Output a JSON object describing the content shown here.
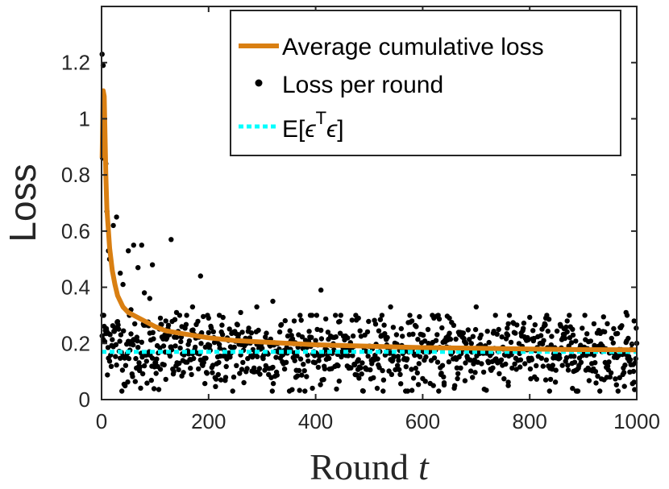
{
  "chart_data": {
    "type": "line",
    "xlabel": "Round",
    "xlabel_var": "t",
    "ylabel": "Loss",
    "xlim": [
      0,
      1000
    ],
    "ylim": [
      0,
      1.4
    ],
    "xticks": [
      0,
      200,
      400,
      600,
      800,
      1000
    ],
    "xtick_labels": [
      "0",
      "200",
      "400",
      "600",
      "800",
      "1000"
    ],
    "yticks": [
      0,
      0.2,
      0.4,
      0.6,
      0.8,
      1,
      1.2
    ],
    "ytick_labels": [
      "0",
      "0.2",
      "0.4",
      "0.6",
      "0.8",
      "1",
      "1.2"
    ],
    "grid": false,
    "legend_position": "top-right",
    "legend": {
      "avg": "Average cumulative loss",
      "per_round": "Loss per round",
      "noise_prefix": "E[",
      "noise_eps": "ϵ",
      "noise_sup": "T",
      "noise_suffix": "]"
    },
    "colors": {
      "avg": "#d97f12",
      "per_round": "#000000",
      "noise": "#00ffff",
      "axes": "#262626"
    },
    "series": [
      {
        "name": "Average cumulative loss",
        "x": [
          1,
          3,
          5,
          8,
          10,
          15,
          20,
          25,
          30,
          40,
          50,
          60,
          80,
          100,
          120,
          150,
          200,
          250,
          300,
          400,
          500,
          600,
          700,
          800,
          900,
          1000
        ],
        "y": [
          0.86,
          1.1,
          1.08,
          0.8,
          0.68,
          0.54,
          0.46,
          0.41,
          0.37,
          0.33,
          0.31,
          0.3,
          0.28,
          0.26,
          0.245,
          0.235,
          0.22,
          0.21,
          0.205,
          0.195,
          0.19,
          0.185,
          0.183,
          0.18,
          0.178,
          0.177
        ]
      },
      {
        "name": "E[ϵTϵ]",
        "x": [
          0,
          1000
        ],
        "y": [
          0.17,
          0.17
        ]
      },
      {
        "name": "Loss per round",
        "scatter": true,
        "outliers": [
          [
            1,
            1.23
          ],
          [
            2,
            0.86
          ],
          [
            3,
            1.19
          ],
          [
            5,
            0.98
          ],
          [
            8,
            0.84
          ],
          [
            10,
            0.67
          ],
          [
            13,
            0.53
          ],
          [
            15,
            0.5
          ],
          [
            22,
            0.62
          ],
          [
            28,
            0.65
          ],
          [
            35,
            0.45
          ],
          [
            40,
            0.41
          ],
          [
            50,
            0.53
          ],
          [
            55,
            0.32
          ],
          [
            60,
            0.55
          ],
          [
            68,
            0.47
          ],
          [
            75,
            0.55
          ],
          [
            80,
            0.38
          ],
          [
            90,
            0.36
          ],
          [
            95,
            0.48
          ],
          [
            110,
            0.29
          ],
          [
            120,
            0.28
          ],
          [
            130,
            0.57
          ],
          [
            140,
            0.31
          ],
          [
            150,
            0.26
          ],
          [
            170,
            0.33
          ],
          [
            185,
            0.44
          ],
          [
            200,
            0.29
          ],
          [
            220,
            0.3
          ],
          [
            260,
            0.31
          ],
          [
            290,
            0.33
          ],
          [
            320,
            0.35
          ],
          [
            360,
            0.28
          ],
          [
            410,
            0.39
          ],
          [
            480,
            0.29
          ],
          [
            540,
            0.33
          ],
          [
            580,
            0.28
          ],
          [
            650,
            0.29
          ],
          [
            700,
            0.33
          ],
          [
            760,
            0.27
          ],
          [
            830,
            0.29
          ],
          [
            870,
            0.28
          ],
          [
            920,
            0.27
          ],
          [
            980,
            0.31
          ],
          [
            995,
            0.28
          ],
          [
            880,
            0.04
          ],
          [
            640,
            0.06
          ],
          [
            760,
            0.05
          ]
        ],
        "bulk_x_range": [
          1,
          1000
        ],
        "bulk_y_mean": 0.17,
        "bulk_y_spread": 0.065
      }
    ]
  }
}
